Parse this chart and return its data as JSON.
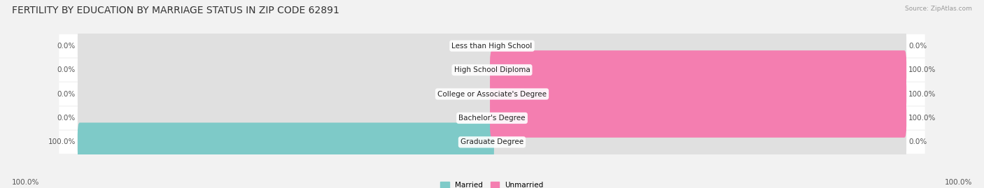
{
  "title": "FERTILITY BY EDUCATION BY MARRIAGE STATUS IN ZIP CODE 62891",
  "source": "Source: ZipAtlas.com",
  "categories": [
    "Less than High School",
    "High School Diploma",
    "College or Associate's Degree",
    "Bachelor's Degree",
    "Graduate Degree"
  ],
  "married_values": [
    0.0,
    0.0,
    0.0,
    0.0,
    100.0
  ],
  "unmarried_values": [
    0.0,
    100.0,
    100.0,
    100.0,
    0.0
  ],
  "married_color": "#7ecac8",
  "unmarried_color": "#f47eb0",
  "background_color": "#f2f2f2",
  "bar_background_color": "#e0e0e0",
  "row_bg_color": "#ffffff",
  "title_fontsize": 10,
  "label_fontsize": 7.5,
  "axis_label_fontsize": 7.5,
  "bar_height": 0.62,
  "left_label": "100.0%",
  "right_label": "100.0%"
}
